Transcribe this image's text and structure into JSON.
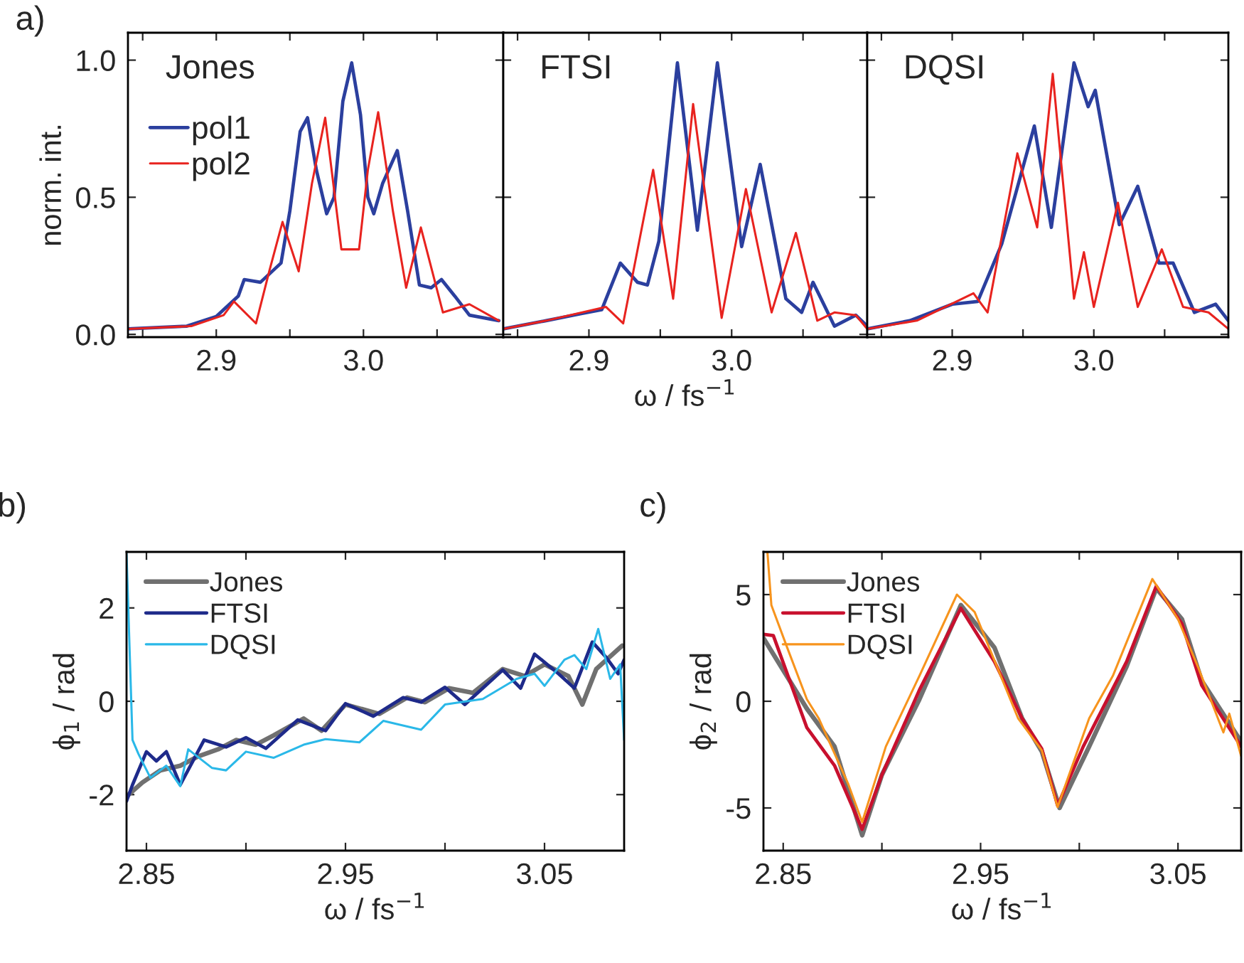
{
  "chart_data": [
    {
      "type": "line",
      "title": "Jones",
      "ylabel": "norm. int.",
      "annotations": [
        "a)"
      ],
      "legend": "top left",
      "grid": false,
      "xlim": [
        2.84,
        3.095
      ],
      "xticks": [
        {
          "value": 2.85,
          "label": null
        },
        2.9,
        {
          "value": 2.95,
          "label": null
        },
        {
          "value": 3.0,
          "label": "3.0"
        },
        {
          "value": 3.05,
          "label": null
        }
      ],
      "ylim": [
        -0.01,
        1.1
      ],
      "yticks": [
        {
          "value": 0,
          "label": "0.0"
        },
        0.5,
        {
          "value": 1,
          "label": "1.0"
        }
      ],
      "series": [
        {
          "name": "pol1",
          "color": "#2b3f9e",
          "x": [
            2.84,
            2.88,
            2.9,
            2.915,
            2.919,
            2.93,
            2.944,
            2.95,
            2.957,
            2.962,
            2.968,
            2.975,
            2.98,
            2.986,
            2.992,
            2.998,
            3.003,
            3.007,
            3.013,
            3.023,
            3.03,
            3.038,
            3.046,
            3.053,
            3.062,
            3.072,
            3.092
          ],
          "values": [
            0.02,
            0.03,
            0.065,
            0.14,
            0.2,
            0.19,
            0.26,
            0.45,
            0.74,
            0.79,
            0.6,
            0.44,
            0.5,
            0.85,
            0.99,
            0.8,
            0.5,
            0.44,
            0.55,
            0.67,
            0.45,
            0.18,
            0.17,
            0.2,
            0.14,
            0.07,
            0.05
          ]
        },
        {
          "name": "pol2",
          "color": "#e8231f",
          "x": [
            2.84,
            2.883,
            2.905,
            2.912,
            2.927,
            2.936,
            2.945,
            2.956,
            2.965,
            2.974,
            2.985,
            2.997,
            3.003,
            3.01,
            3.02,
            3.029,
            3.039,
            3.054,
            3.072,
            3.092
          ],
          "values": [
            0.02,
            0.03,
            0.07,
            0.12,
            0.04,
            0.23,
            0.41,
            0.23,
            0.55,
            0.79,
            0.31,
            0.31,
            0.6,
            0.81,
            0.45,
            0.17,
            0.39,
            0.08,
            0.11,
            0.05
          ]
        }
      ]
    },
    {
      "type": "line",
      "title": "FTSI",
      "xlabel": "ω / fs$^{−1}$",
      "tick_labels": "x",
      "grid": false,
      "xlim": [
        2.84,
        3.095
      ],
      "xticks": [
        {
          "value": 2.85,
          "label": null
        },
        2.9,
        {
          "value": 2.95,
          "label": null
        },
        {
          "value": 3.0,
          "label": "3.0"
        },
        {
          "value": 3.05,
          "label": null
        }
      ],
      "ylim": [
        -0.01,
        1.1
      ],
      "yticks": [
        {
          "value": 0,
          "label": null
        },
        {
          "value": 0.5,
          "label": null
        },
        {
          "value": 1,
          "label": null
        }
      ],
      "series": [
        {
          "color": "#2b3f9e",
          "x": [
            2.84,
            2.87,
            2.894,
            2.909,
            2.922,
            2.934,
            2.941,
            2.949,
            2.962,
            2.976,
            2.99,
            3.007,
            3.02,
            3.038,
            3.049,
            3.057,
            3.072,
            3.087,
            3.095
          ],
          "values": [
            0.02,
            0.05,
            0.075,
            0.09,
            0.26,
            0.19,
            0.18,
            0.34,
            0.99,
            0.38,
            0.99,
            0.32,
            0.62,
            0.13,
            0.08,
            0.19,
            0.03,
            0.07,
            0.03
          ]
        },
        {
          "color": "#e8231f",
          "x": [
            2.84,
            2.87,
            2.912,
            2.924,
            2.945,
            2.959,
            2.973,
            2.993,
            3.01,
            3.028,
            3.045,
            3.06,
            3.072,
            3.087,
            3.095
          ],
          "values": [
            0.02,
            0.05,
            0.1,
            0.04,
            0.6,
            0.13,
            0.84,
            0.06,
            0.53,
            0.08,
            0.37,
            0.05,
            0.08,
            0.07,
            0.02
          ]
        }
      ]
    },
    {
      "type": "line",
      "title": "DQSI",
      "tick_labels": "x",
      "grid": false,
      "xlim": [
        2.84,
        3.095
      ],
      "xticks": [
        {
          "value": 2.85,
          "label": null
        },
        2.9,
        {
          "value": 2.95,
          "label": null
        },
        {
          "value": 3.0,
          "label": "3.0"
        },
        {
          "value": 3.05,
          "label": null
        }
      ],
      "ylim": [
        -0.01,
        1.1
      ],
      "yticks": [
        {
          "value": 0,
          "label": null
        },
        {
          "value": 0.5,
          "label": null
        },
        {
          "value": 1,
          "label": null
        }
      ],
      "series": [
        {
          "color": "#2b3f9e",
          "x": [
            2.84,
            2.87,
            2.9,
            2.918,
            2.935,
            2.958,
            2.97,
            2.986,
            2.996,
            3.001,
            3.018,
            3.031,
            3.046,
            3.056,
            3.071,
            3.086,
            3.095
          ],
          "values": [
            0.02,
            0.05,
            0.11,
            0.12,
            0.33,
            0.76,
            0.39,
            0.99,
            0.83,
            0.89,
            0.4,
            0.54,
            0.26,
            0.26,
            0.08,
            0.11,
            0.05
          ]
        },
        {
          "color": "#e8231f",
          "x": [
            2.84,
            2.875,
            2.915,
            2.925,
            2.946,
            2.96,
            2.971,
            2.986,
            2.993,
            3.0,
            3.017,
            3.031,
            3.048,
            3.063,
            3.081,
            3.095
          ],
          "values": [
            0.02,
            0.05,
            0.15,
            0.08,
            0.66,
            0.39,
            0.95,
            0.13,
            0.3,
            0.1,
            0.48,
            0.1,
            0.31,
            0.1,
            0.08,
            0.02
          ]
        }
      ]
    },
    {
      "type": "line",
      "xlabel": "ω / fs$^{−1}$",
      "ylabel": "ϕ$_{1}$ / rad",
      "annotations": [
        "b)"
      ],
      "legend": "top left",
      "grid": false,
      "xlim": [
        2.84,
        3.09
      ],
      "xticks": [
        2.85,
        {
          "value": 2.9,
          "label": null
        },
        2.95,
        {
          "value": 3.0,
          "label": null
        },
        3.05
      ],
      "ylim": [
        -3.2,
        3.2
      ],
      "yticks": [
        -2,
        0,
        2
      ],
      "series": [
        {
          "name": "Jones",
          "color": "#707070",
          "x": [
            2.84,
            2.848,
            2.857,
            2.867,
            2.876,
            2.886,
            2.895,
            2.905,
            2.914,
            2.929,
            2.938,
            2.95,
            2.967,
            2.981,
            2.99,
            3.002,
            3.014,
            3.029,
            3.04,
            3.05,
            3.062,
            3.069,
            3.076,
            3.089
          ],
          "values": [
            -2.04,
            -1.74,
            -1.48,
            -1.38,
            -1.18,
            -1.03,
            -0.83,
            -0.93,
            -0.73,
            -0.37,
            -0.63,
            -0.07,
            -0.27,
            0.08,
            -0.02,
            0.28,
            0.18,
            0.69,
            0.54,
            0.79,
            0.54,
            -0.07,
            0.69,
            1.19
          ]
        },
        {
          "name": "FTSI",
          "color": "#1e2a8a",
          "x": [
            2.84,
            2.843,
            2.85,
            2.855,
            2.86,
            2.867,
            2.879,
            2.89,
            2.9,
            2.91,
            2.926,
            2.94,
            2.95,
            2.964,
            2.979,
            2.988,
            3.0,
            3.01,
            3.029,
            3.038,
            3.045,
            3.057,
            3.065,
            3.074,
            3.081,
            3.087,
            3.09
          ],
          "values": [
            -2.14,
            -1.79,
            -1.08,
            -1.28,
            -1.08,
            -1.79,
            -0.83,
            -0.98,
            -0.78,
            -1.01,
            -0.4,
            -0.63,
            -0.05,
            -0.32,
            0.08,
            -0.02,
            0.3,
            -0.07,
            0.67,
            0.28,
            1.01,
            0.59,
            0.28,
            1.27,
            0.94,
            0.59,
            0.89
          ]
        },
        {
          "name": "DQSI",
          "color": "#2ab8e8",
          "x": [
            2.84,
            2.843,
            2.846,
            2.852,
            2.86,
            2.867,
            2.871,
            2.883,
            2.89,
            2.9,
            2.914,
            2.929,
            2.94,
            2.957,
            2.969,
            2.988,
            3.0,
            3.019,
            3.036,
            3.045,
            3.05,
            3.06,
            3.065,
            3.071,
            3.077,
            3.083,
            3.088,
            3.09
          ],
          "values": [
            3.16,
            -0.83,
            -1.13,
            -1.64,
            -1.38,
            -1.82,
            -1.03,
            -1.43,
            -1.48,
            -1.08,
            -1.21,
            -0.93,
            -0.81,
            -0.88,
            -0.42,
            -0.61,
            -0.07,
            0.05,
            0.48,
            0.59,
            0.33,
            0.89,
            0.99,
            0.69,
            1.55,
            0.48,
            0.79,
            -0.83
          ]
        }
      ]
    },
    {
      "type": "line",
      "xlabel": "ω / fs$^{−1}$",
      "ylabel": "ϕ$_{2}$ / rad",
      "annotations": [
        "c)"
      ],
      "legend": "top left",
      "grid": false,
      "xlim": [
        2.84,
        3.082
      ],
      "xticks": [
        2.85,
        {
          "value": 2.9,
          "label": null
        },
        2.95,
        {
          "value": 3.0,
          "label": null
        },
        3.05
      ],
      "ylim": [
        -7,
        7
      ],
      "yticks": [
        -5,
        0,
        5
      ],
      "series": [
        {
          "name": "Jones",
          "color": "#707070",
          "x": [
            2.84,
            2.862,
            2.876,
            2.89,
            2.9,
            2.919,
            2.94,
            2.957,
            2.971,
            2.981,
            2.99,
            3.005,
            3.024,
            3.039,
            3.052,
            3.062,
            3.082
          ],
          "values": [
            2.96,
            -0.35,
            -2.12,
            -6.28,
            -3.45,
            0.09,
            4.51,
            2.52,
            -0.8,
            -2.35,
            -5.0,
            -2.12,
            1.64,
            5.29,
            3.85,
            0.97,
            -1.9
          ]
        },
        {
          "name": "FTSI",
          "color": "#c8102e",
          "x": [
            2.84,
            2.845,
            2.862,
            2.876,
            2.89,
            2.9,
            2.919,
            2.94,
            2.957,
            2.971,
            2.981,
            2.989,
            3.002,
            3.024,
            3.039,
            3.052,
            3.062,
            3.082
          ],
          "values": [
            3.14,
            3.08,
            -1.24,
            -3.01,
            -6.0,
            -3.45,
            0.53,
            4.36,
            1.86,
            -0.8,
            -2.23,
            -4.89,
            -2.12,
            1.86,
            5.4,
            3.63,
            0.75,
            -2.12
          ]
        },
        {
          "name": "DQSI",
          "color": "#f7941d",
          "x": [
            2.842,
            2.844,
            2.852,
            2.862,
            2.868,
            2.883,
            2.89,
            2.902,
            2.919,
            2.938,
            2.947,
            2.969,
            2.981,
            2.989,
            3.005,
            3.017,
            3.037,
            3.05,
            3.06,
            3.073,
            3.076,
            3.082
          ],
          "values": [
            7.0,
            4.51,
            2.52,
            0.09,
            -0.8,
            -3.89,
            -5.66,
            -2.12,
            1.19,
            5.0,
            4.18,
            -0.8,
            -2.3,
            -4.96,
            -0.8,
            1.19,
            5.73,
            3.85,
            1.64,
            -1.46,
            -0.58,
            -2.57
          ]
        }
      ]
    }
  ]
}
